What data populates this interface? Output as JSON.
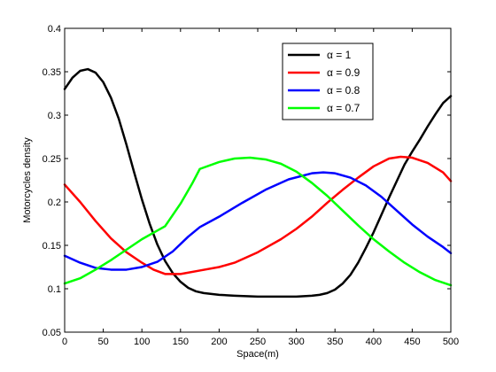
{
  "chart_data": {
    "type": "line",
    "title": "",
    "xlabel": "Space(m)",
    "ylabel": "Motorcycles density",
    "xlim": [
      0,
      500
    ],
    "ylim": [
      0.05,
      0.4
    ],
    "xticks": [
      0,
      50,
      100,
      150,
      200,
      250,
      300,
      350,
      400,
      450,
      500
    ],
    "yticks": [
      0.05,
      0.1,
      0.15,
      0.2,
      0.25,
      0.3,
      0.35,
      0.4
    ],
    "xtick_labels": [
      "0",
      "50",
      "100",
      "150",
      "200",
      "250",
      "300",
      "350",
      "400",
      "450",
      "500"
    ],
    "ytick_labels": [
      "0.05",
      "0.1",
      "0.15",
      "0.2",
      "0.25",
      "0.3",
      "0.35",
      "0.4"
    ],
    "grid": false,
    "legend_position": "top-right",
    "series": [
      {
        "name": "α = 1",
        "color": "#000000",
        "x": [
          0,
          10,
          20,
          30,
          40,
          50,
          60,
          70,
          80,
          90,
          100,
          110,
          120,
          130,
          140,
          150,
          160,
          170,
          180,
          200,
          220,
          250,
          280,
          300,
          320,
          330,
          340,
          350,
          360,
          370,
          380,
          390,
          400,
          410,
          420,
          430,
          440,
          450,
          460,
          470,
          480,
          490,
          500
        ],
        "y": [
          0.33,
          0.343,
          0.351,
          0.353,
          0.349,
          0.338,
          0.32,
          0.296,
          0.266,
          0.234,
          0.203,
          0.175,
          0.151,
          0.132,
          0.118,
          0.108,
          0.101,
          0.097,
          0.095,
          0.093,
          0.092,
          0.091,
          0.091,
          0.091,
          0.092,
          0.093,
          0.095,
          0.099,
          0.106,
          0.116,
          0.13,
          0.147,
          0.165,
          0.185,
          0.205,
          0.224,
          0.243,
          0.258,
          0.272,
          0.287,
          0.301,
          0.314,
          0.322
        ]
      },
      {
        "name": "α = 0.9",
        "color": "#ff0000",
        "x": [
          0,
          20,
          40,
          60,
          80,
          100,
          115,
          130,
          150,
          175,
          200,
          220,
          250,
          280,
          300,
          320,
          340,
          360,
          380,
          400,
          420,
          435,
          450,
          470,
          490,
          500
        ],
        "y": [
          0.22,
          0.2,
          0.178,
          0.158,
          0.142,
          0.13,
          0.122,
          0.117,
          0.117,
          0.121,
          0.125,
          0.13,
          0.142,
          0.157,
          0.169,
          0.183,
          0.199,
          0.214,
          0.228,
          0.241,
          0.25,
          0.252,
          0.251,
          0.245,
          0.234,
          0.224
        ]
      },
      {
        "name": "α = 0.8",
        "color": "#0000ff",
        "x": [
          0,
          20,
          40,
          60,
          80,
          100,
          120,
          140,
          160,
          175,
          200,
          230,
          260,
          290,
          320,
          335,
          350,
          370,
          390,
          410,
          430,
          450,
          470,
          490,
          500
        ],
        "y": [
          0.138,
          0.13,
          0.124,
          0.122,
          0.122,
          0.125,
          0.131,
          0.143,
          0.16,
          0.171,
          0.183,
          0.199,
          0.214,
          0.226,
          0.233,
          0.234,
          0.233,
          0.228,
          0.219,
          0.206,
          0.19,
          0.174,
          0.16,
          0.148,
          0.141
        ]
      },
      {
        "name": "α = 0.7",
        "color": "#00ff00",
        "x": [
          0,
          20,
          40,
          60,
          80,
          100,
          120,
          130,
          150,
          165,
          175,
          200,
          220,
          240,
          260,
          280,
          300,
          320,
          340,
          360,
          380,
          400,
          420,
          440,
          460,
          480,
          500
        ],
        "y": [
          0.106,
          0.112,
          0.122,
          0.133,
          0.145,
          0.157,
          0.167,
          0.172,
          0.198,
          0.221,
          0.238,
          0.246,
          0.25,
          0.251,
          0.249,
          0.244,
          0.235,
          0.222,
          0.207,
          0.19,
          0.173,
          0.157,
          0.143,
          0.13,
          0.119,
          0.11,
          0.104
        ]
      }
    ]
  }
}
